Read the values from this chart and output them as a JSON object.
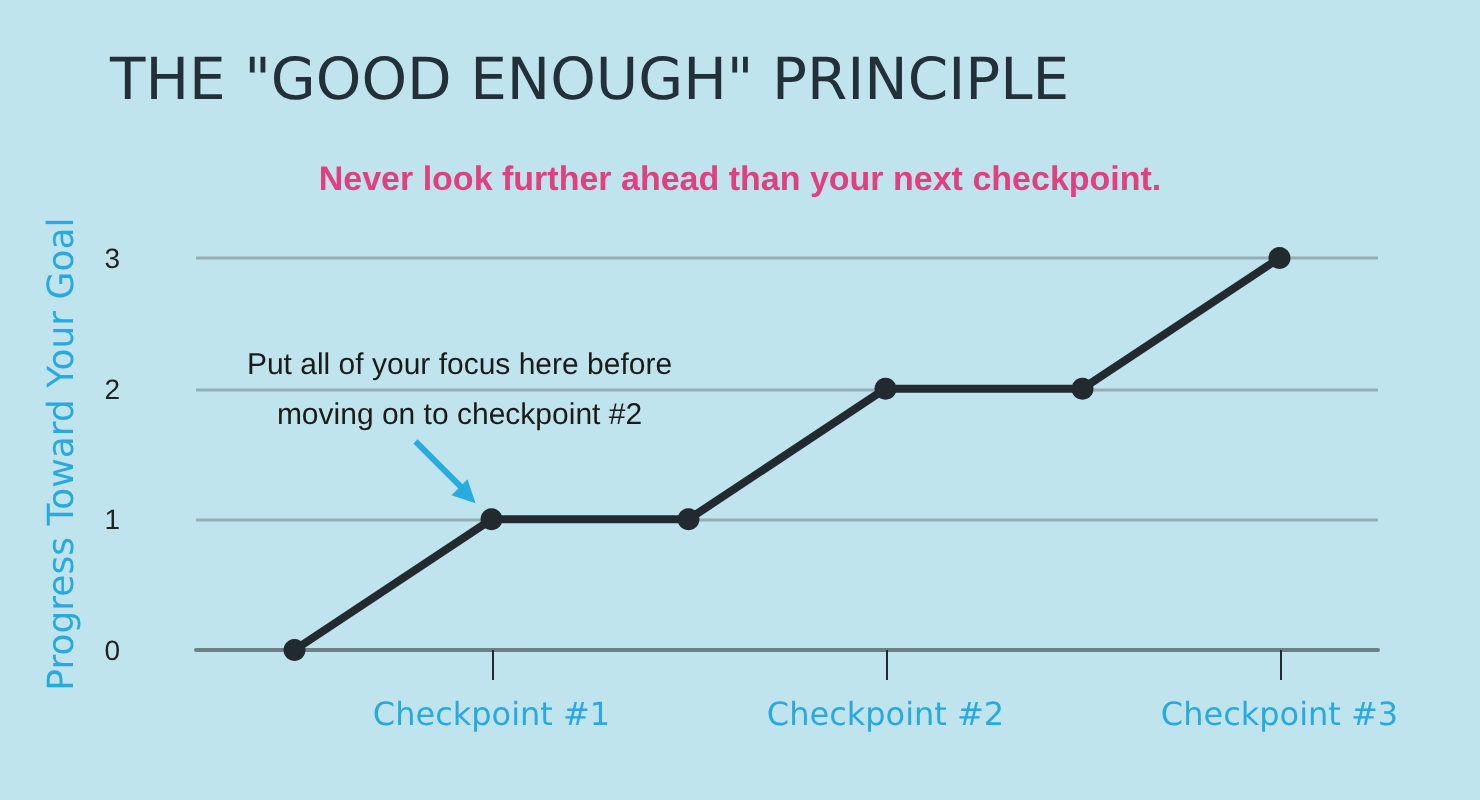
{
  "chart_data": {
    "type": "line",
    "title": "THE \"GOOD ENOUGH\" PRINCIPLE",
    "subtitle": "Never look further ahead than your next checkpoint.",
    "ylabel": "Progress Toward Your Goal",
    "categories": [
      null,
      "Checkpoint #1",
      null,
      "Checkpoint #2",
      null,
      "Checkpoint #3"
    ],
    "series": [
      {
        "color": "#222a30",
        "values": [
          0,
          1,
          1,
          2,
          2,
          3
        ]
      }
    ],
    "ylim": [
      0,
      3
    ],
    "yticks": [
      0,
      1,
      2,
      3
    ],
    "grid": "y",
    "marker": "circle",
    "line_style": "solid",
    "annotations": [
      {
        "text": "Put all of your focus here before\nmoving on to checkpoint #2",
        "x": "Checkpoint #1",
        "y": 1
      }
    ]
  }
}
